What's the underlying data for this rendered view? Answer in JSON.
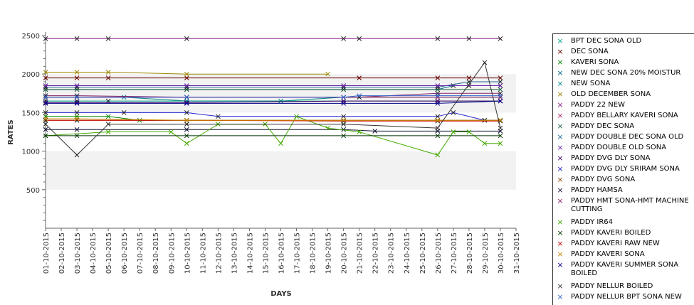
{
  "chart_data": {
    "type": "line",
    "xlabel": "DAYS",
    "ylabel": "RATES",
    "ylim": [
      0,
      2500
    ],
    "yticks": [
      500,
      1000,
      1500,
      2000,
      2500
    ],
    "grid": "alternating horizontal bands",
    "band_color": "#f2f2f2",
    "legend_position": "right",
    "x_dates": [
      "01-10-2015",
      "02-10-2015",
      "03-10-2015",
      "04-10-2015",
      "05-10-2015",
      "06-10-2015",
      "07-10-2015",
      "08-10-2015",
      "09-10-2015",
      "10-10-2015",
      "11-10-2015",
      "12-10-2015",
      "13-10-2015",
      "14-10-2015",
      "15-10-2015",
      "16-10-2015",
      "17-10-2015",
      "18-10-2015",
      "19-10-2015",
      "20-10-2015",
      "21-10-2015",
      "22-10-2015",
      "23-10-2015",
      "24-10-2015",
      "25-10-2015",
      "26-10-2015",
      "27-10-2015",
      "28-10-2015",
      "29-10-2015",
      "30-10-2015",
      "31-10-2015"
    ],
    "series": [
      {
        "name": "BPT DEC SONA OLD",
        "color": "#00aa88",
        "points": [
          [
            1,
            1650
          ],
          [
            3,
            1650
          ],
          [
            5,
            1650
          ],
          [
            10,
            1650
          ],
          [
            20,
            1650
          ],
          [
            26,
            1650
          ],
          [
            30,
            1650
          ]
        ]
      },
      {
        "name": "DEC SONA",
        "color": "#660000",
        "points": [
          [
            1,
            1950
          ],
          [
            3,
            1950
          ],
          [
            5,
            1950
          ],
          [
            10,
            1950
          ],
          [
            21,
            1950
          ],
          [
            26,
            1950
          ],
          [
            28,
            1950
          ],
          [
            30,
            1950
          ]
        ]
      },
      {
        "name": "KAVERI SONA",
        "color": "#008800",
        "points": [
          [
            1,
            1450
          ],
          [
            3,
            1450
          ],
          [
            5,
            1450
          ],
          [
            7,
            1400
          ],
          [
            10,
            1400
          ],
          [
            26,
            1400
          ],
          [
            29,
            1400
          ],
          [
            30,
            1400
          ]
        ]
      },
      {
        "name": "NEW DEC SONA 20% MOISTUR",
        "color": "#006688",
        "points": [
          [
            1,
            1800
          ],
          [
            3,
            1800
          ],
          [
            10,
            1800
          ],
          [
            20,
            1800
          ],
          [
            26,
            1800
          ],
          [
            27,
            1850
          ],
          [
            28,
            1850
          ],
          [
            30,
            1850
          ]
        ]
      },
      {
        "name": "NEW SONA",
        "color": "#008888",
        "points": [
          [
            1,
            1700
          ],
          [
            3,
            1700
          ],
          [
            6,
            1700
          ],
          [
            10,
            1650
          ],
          [
            16,
            1650
          ],
          [
            20,
            1700
          ],
          [
            26,
            1700
          ],
          [
            30,
            1700
          ]
        ]
      },
      {
        "name": "OLD DECEMBER SONA",
        "color": "#998800",
        "points": [
          [
            1,
            2025
          ],
          [
            3,
            2025
          ],
          [
            5,
            2025
          ],
          [
            10,
            2000
          ],
          [
            19,
            2000
          ]
        ]
      },
      {
        "name": "PADDY 22 NEW",
        "color": "#882288",
        "points": [
          [
            1,
            2460
          ],
          [
            3,
            2460
          ],
          [
            5,
            2460
          ],
          [
            10,
            2460
          ],
          [
            20,
            2460
          ],
          [
            21,
            2460
          ],
          [
            26,
            2460
          ],
          [
            28,
            2460
          ],
          [
            30,
            2460
          ]
        ]
      },
      {
        "name": "PADDY BELLARY KAVERI SONA",
        "color": "#aa2266",
        "points": [
          [
            1,
            1700
          ],
          [
            3,
            1700
          ],
          [
            10,
            1700
          ],
          [
            20,
            1700
          ],
          [
            26,
            1700
          ],
          [
            30,
            1700
          ]
        ]
      },
      {
        "name": "PADDY DEC SONA",
        "color": "#226644",
        "points": [
          [
            1,
            1800
          ],
          [
            3,
            1800
          ],
          [
            10,
            1800
          ],
          [
            20,
            1800
          ],
          [
            26,
            1800
          ],
          [
            30,
            1800
          ]
        ]
      },
      {
        "name": "PADDY DOUBLE DEC SONA OLD",
        "color": "#226699",
        "points": [
          [
            1,
            1830
          ],
          [
            3,
            1830
          ],
          [
            10,
            1830
          ],
          [
            20,
            1830
          ],
          [
            26,
            1830
          ],
          [
            28,
            1900
          ],
          [
            30,
            1900
          ]
        ]
      },
      {
        "name": "PADDY DOUBLE OLD SONA",
        "color": "#6622aa",
        "points": [
          [
            1,
            1850
          ],
          [
            3,
            1850
          ],
          [
            10,
            1850
          ],
          [
            20,
            1850
          ],
          [
            26,
            1850
          ],
          [
            30,
            1850
          ]
        ]
      },
      {
        "name": "PADDY DVG DLY SONA",
        "color": "#440066",
        "points": [
          [
            1,
            1630
          ],
          [
            3,
            1630
          ],
          [
            10,
            1630
          ],
          [
            20,
            1650
          ],
          [
            26,
            1650
          ],
          [
            30,
            1650
          ]
        ]
      },
      {
        "name": "PADDY DVG DLY SRIRAM SONA",
        "color": "#2222cc",
        "points": [
          [
            1,
            1500
          ],
          [
            3,
            1500
          ],
          [
            6,
            1500
          ],
          [
            10,
            1500
          ],
          [
            12,
            1450
          ],
          [
            20,
            1450
          ],
          [
            26,
            1450
          ],
          [
            27,
            1500
          ],
          [
            29,
            1400
          ],
          [
            30,
            1400
          ]
        ]
      },
      {
        "name": "PADDY DVG SONA",
        "color": "#884400",
        "points": [
          [
            1,
            1400
          ],
          [
            3,
            1400
          ],
          [
            10,
            1400
          ],
          [
            20,
            1400
          ],
          [
            26,
            1400
          ],
          [
            30,
            1400
          ]
        ]
      },
      {
        "name": "PADDY HAMSA",
        "color": "#111133",
        "points": [
          [
            1,
            1280
          ],
          [
            3,
            1280
          ],
          [
            10,
            1280
          ],
          [
            20,
            1280
          ],
          [
            22,
            1260
          ],
          [
            26,
            1260
          ],
          [
            30,
            1260
          ]
        ]
      },
      {
        "name": "PADDY HMT SONA-HMT MACHINE CUTTING",
        "color": "#882266",
        "points": [
          [
            1,
            1720
          ],
          [
            3,
            1720
          ],
          [
            10,
            1700
          ],
          [
            21,
            1700
          ],
          [
            26,
            1750
          ],
          [
            30,
            1750
          ]
        ]
      },
      {
        "name": "PADDY IR64",
        "color": "#44aa00",
        "points": [
          [
            1,
            1200
          ],
          [
            5,
            1250
          ],
          [
            9,
            1250
          ],
          [
            10,
            1100
          ],
          [
            12,
            1350
          ],
          [
            15,
            1350
          ],
          [
            16,
            1100
          ],
          [
            17,
            1450
          ],
          [
            19,
            1300
          ],
          [
            21,
            1250
          ],
          [
            26,
            950
          ],
          [
            27,
            1250
          ],
          [
            28,
            1250
          ],
          [
            29,
            1100
          ],
          [
            30,
            1100
          ]
        ]
      },
      {
        "name": "PADDY KAVERI BOILED",
        "color": "#003300",
        "points": [
          [
            1,
            1200
          ],
          [
            3,
            1200
          ],
          [
            10,
            1200
          ],
          [
            20,
            1200
          ],
          [
            26,
            1200
          ],
          [
            30,
            1200
          ]
        ]
      },
      {
        "name": "PADDY KAVERI RAW NEW",
        "color": "#cc0000",
        "points": [
          [
            1,
            1400
          ],
          [
            3,
            1400
          ],
          [
            10,
            1400
          ],
          [
            20,
            1390
          ],
          [
            26,
            1390
          ],
          [
            30,
            1390
          ]
        ]
      },
      {
        "name": "PADDY KAVERI SONA",
        "color": "#cc8800",
        "points": [
          [
            1,
            1420
          ],
          [
            3,
            1420
          ],
          [
            10,
            1400
          ],
          [
            20,
            1400
          ],
          [
            26,
            1400
          ],
          [
            30,
            1400
          ]
        ]
      },
      {
        "name": "PADDY KAVERI SUMMER SONA BOILED",
        "color": "#000088",
        "points": [
          [
            1,
            1620
          ],
          [
            3,
            1620
          ],
          [
            10,
            1620
          ],
          [
            20,
            1620
          ],
          [
            26,
            1620
          ],
          [
            30,
            1650
          ]
        ]
      },
      {
        "name": "PADDY NELLUR BOILED",
        "color": "#333333",
        "points": [
          [
            1,
            1350
          ],
          [
            3,
            950
          ],
          [
            5,
            1350
          ],
          [
            10,
            1350
          ],
          [
            20,
            1350
          ],
          [
            26,
            1300
          ],
          [
            29,
            2150
          ],
          [
            30,
            1300
          ]
        ]
      },
      {
        "name": "PADDY NELLUR BPT SONA NEW",
        "color": "#3366cc",
        "points": [
          [
            1,
            1700
          ],
          [
            3,
            1700
          ],
          [
            10,
            1700
          ],
          [
            20,
            1700
          ],
          [
            21,
            1720
          ],
          [
            26,
            1720
          ],
          [
            30,
            1720
          ]
        ]
      }
    ]
  },
  "legend": {
    "items": [
      {
        "label": "BPT DEC SONA OLD"
      },
      {
        "label": "DEC SONA"
      },
      {
        "label": "KAVERI SONA"
      },
      {
        "label": "NEW DEC SONA 20% MOISTUR"
      },
      {
        "label": "NEW SONA"
      },
      {
        "label": "OLD DECEMBER SONA"
      },
      {
        "label": "PADDY 22 NEW"
      },
      {
        "label": "PADDY BELLARY KAVERI SONA"
      },
      {
        "label": "PADDY DEC SONA"
      },
      {
        "label": "PADDY DOUBLE DEC SONA OLD"
      },
      {
        "label": "PADDY DOUBLE OLD SONA"
      },
      {
        "label": "PADDY DVG DLY SONA"
      },
      {
        "label": "PADDY DVG DLY SRIRAM SONA"
      },
      {
        "label": "PADDY DVG SONA"
      },
      {
        "label": "PADDY HAMSA"
      },
      {
        "label": "PADDY HMT SONA-HMT MACHINE CUTTING"
      },
      {
        "label": "PADDY IR64"
      },
      {
        "label": "PADDY KAVERI BOILED"
      },
      {
        "label": "PADDY KAVERI RAW NEW"
      },
      {
        "label": "PADDY KAVERI SONA"
      },
      {
        "label": "PADDY KAVERI SUMMER SONA BOILED"
      },
      {
        "label": "PADDY NELLUR BOILED"
      },
      {
        "label": "PADDY NELLUR BPT SONA NEW"
      }
    ]
  }
}
